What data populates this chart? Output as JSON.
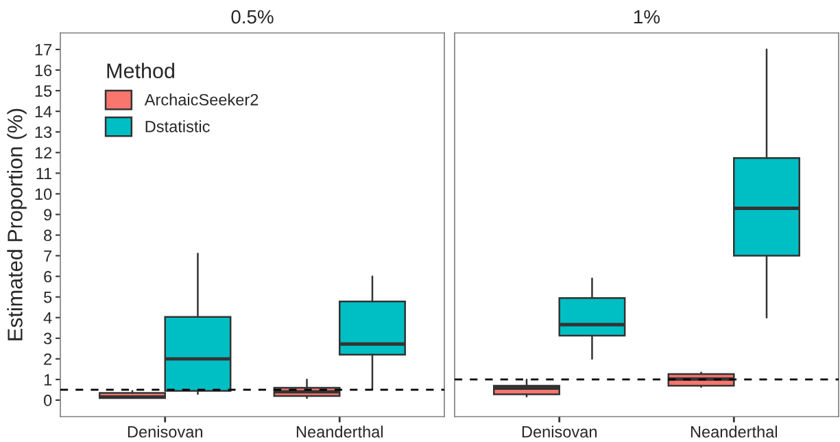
{
  "chart_data": [
    {
      "type": "box",
      "title": "0.5%",
      "ylabel": "Estimated Proportion (%)",
      "legend_title": "Method",
      "legend": "top left",
      "grid": false,
      "categories": [
        "Denisovan",
        "Neanderthal"
      ],
      "ylim": [
        -0.8,
        17.8
      ],
      "yticks": [
        0,
        1,
        2,
        3,
        4,
        5,
        6,
        7,
        8,
        9,
        10,
        11,
        12,
        13,
        14,
        15,
        16,
        17
      ],
      "series": [
        {
          "name": "ArchaicSeeker2",
          "color": "#f8766d",
          "boxes": [
            {
              "low": 0.1,
              "q1": 0.1,
              "median": 0.15,
              "q3": 0.35,
              "high": 0.45
            },
            {
              "low": 0.1,
              "q1": 0.2,
              "median": 0.4,
              "q3": 0.6,
              "high": 1.0
            }
          ]
        },
        {
          "name": "Dstatistic",
          "color": "#00bfc4",
          "boxes": [
            {
              "low": 0.3,
              "q1": 0.45,
              "median": 2.0,
              "q3": 4.03,
              "high": 7.1
            },
            {
              "low": 0.5,
              "q1": 2.2,
              "median": 2.72,
              "q3": 4.78,
              "high": 6.0
            }
          ]
        }
      ],
      "ref_lines": [
        {
          "axis": "y",
          "value": 0.5,
          "line_style": "dashed",
          "color": "#000000"
        }
      ]
    },
    {
      "type": "box",
      "title": "1%",
      "grid": false,
      "tick_labels": "x",
      "categories": [
        "Denisovan",
        "Neanderthal"
      ],
      "ylim": [
        -0.8,
        17.8
      ],
      "yticks": [
        0,
        1,
        2,
        3,
        4,
        5,
        6,
        7,
        8,
        9,
        10,
        11,
        12,
        13,
        14,
        15,
        16,
        17
      ],
      "series": [
        {
          "color": "#f8766d",
          "boxes": [
            {
              "low": 0.17,
              "q1": 0.28,
              "median": 0.58,
              "q3": 0.7,
              "high": 1.0
            },
            {
              "low": 0.64,
              "q1": 0.7,
              "median": 1.02,
              "q3": 1.26,
              "high": 1.34
            }
          ]
        },
        {
          "color": "#00bfc4",
          "boxes": [
            {
              "low": 2.0,
              "q1": 3.13,
              "median": 3.66,
              "q3": 4.95,
              "high": 5.9
            },
            {
              "low": 4.0,
              "q1": 7.0,
              "median": 9.3,
              "q3": 11.74,
              "high": 17.0
            }
          ]
        }
      ],
      "ref_lines": [
        {
          "axis": "y",
          "value": 1,
          "line_style": "dashed",
          "color": "#000000"
        }
      ]
    }
  ]
}
